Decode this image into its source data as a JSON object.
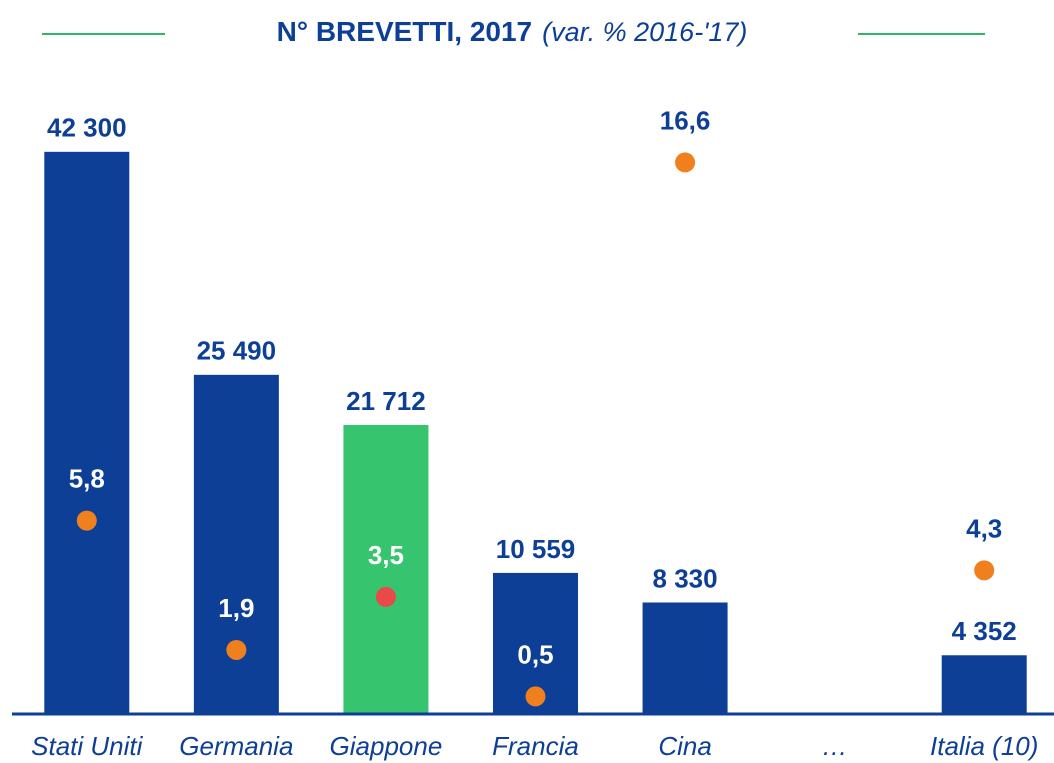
{
  "chart_data": {
    "type": "bar",
    "title": "N° BREVETTI, 2017",
    "subtitle": "(var. % 2016-'17)",
    "categories": [
      "Stati Uniti",
      "Germania",
      "Giappone",
      "Francia",
      "Cina",
      "…",
      "Italia (10)"
    ],
    "series": [
      {
        "values": [
          42300,
          25490,
          21712,
          10559,
          8330,
          null,
          4352
        ],
        "value_labels": [
          "42 300",
          "25 490",
          "21 712",
          "10 559",
          "8 330",
          null,
          "4 352"
        ],
        "colors": [
          "#0d3f97",
          "#0d3f97",
          "#36c46e",
          "#0d3f97",
          "#0d3f97",
          null,
          "#0d3f97"
        ]
      },
      {
        "axis": "y2",
        "values": [
          5.8,
          1.9,
          3.5,
          0.5,
          16.6,
          null,
          4.3
        ],
        "value_labels": [
          "5,8",
          "1,9",
          "3,5",
          "0,5",
          "16,6",
          null,
          "4,3"
        ],
        "colors": [
          "#f07f1e",
          "#f07f1e",
          "#e94949",
          "#f07f1e",
          "#f07f1e",
          null,
          "#f07f1e"
        ]
      }
    ],
    "ylim": [
      0,
      45000
    ],
    "y2lim": [
      0,
      18
    ]
  }
}
